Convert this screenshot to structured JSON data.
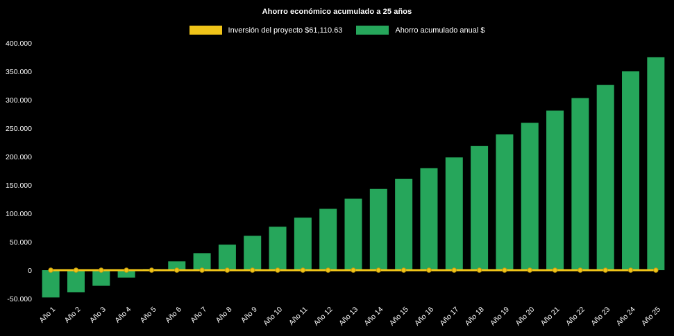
{
  "page": {
    "background": "#000000",
    "text_color": "#ffffff"
  },
  "header": {
    "title": "Ahorro económico acumulado a 25 años"
  },
  "chart_data": {
    "type": "bar",
    "title": "Ahorro económico acumulado a 25 años",
    "categories": [
      "Año 1",
      "Año 2",
      "Año 3",
      "Año 4",
      "Año 5",
      "Año 6",
      "Año 7",
      "Año 8",
      "Año 9",
      "Año 10",
      "Año 11",
      "Año 12",
      "Año 13",
      "Año 14",
      "Año 15",
      "Año 16",
      "Año 17",
      "Año 18",
      "Año 19",
      "Año 20",
      "Año 21",
      "Año 22",
      "Año 23",
      "Año 24",
      "Año 25"
    ],
    "series": [
      {
        "name": "Inversión del proyecto $61,110.63",
        "render_as": "line",
        "color": "#f0c419",
        "values": [
          0,
          0,
          0,
          0,
          0,
          0,
          0,
          0,
          0,
          0,
          0,
          0,
          0,
          0,
          0,
          0,
          0,
          0,
          0,
          0,
          0,
          0,
          0,
          0,
          0
        ]
      },
      {
        "name": "Ahorro acumulado anual $",
        "render_as": "bar",
        "color": "#26a65b",
        "values": [
          -48000,
          -39000,
          -27500,
          -13000,
          2000,
          15500,
          30000,
          45000,
          60500,
          76500,
          92500,
          108000,
          126000,
          143000,
          161000,
          179500,
          198500,
          218500,
          239000,
          259500,
          281000,
          303000,
          326000,
          350000,
          375000
        ]
      }
    ],
    "xlabel": "",
    "ylabel": "",
    "ylim": [
      -50000,
      400000
    ],
    "ytick_step": 50000,
    "ytick_labels": [
      "-50.000",
      "0",
      "50.000",
      "100.000",
      "150.000",
      "200.000",
      "250.000",
      "300.000",
      "350.000",
      "400.000"
    ],
    "grid": false,
    "legend_position": "top",
    "x_tick_rotation_deg": -45
  }
}
